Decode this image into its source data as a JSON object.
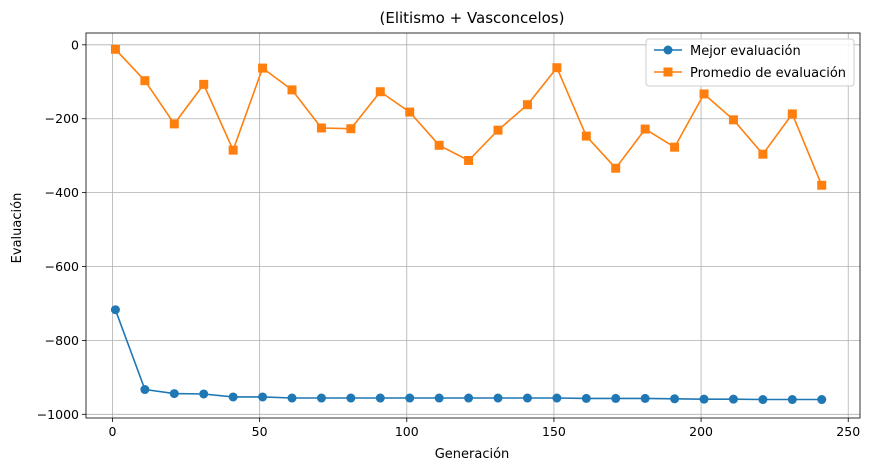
{
  "chart_data": {
    "type": "line",
    "title": "(Elitismo + Vasconcelos)",
    "xlabel": "Generación",
    "ylabel": "Evaluación",
    "xlim": [
      -9,
      254
    ],
    "ylim": [
      -1010,
      32
    ],
    "xticks": [
      0,
      50,
      100,
      150,
      200,
      250
    ],
    "yticks": [
      0,
      -200,
      -400,
      -600,
      -800,
      -1000
    ],
    "xtick_labels": [
      "0",
      "50",
      "100",
      "150",
      "200",
      "250"
    ],
    "ytick_labels": [
      "0",
      "−200",
      "−400",
      "−600",
      "−800",
      "−1000"
    ],
    "grid": true,
    "legend_position": "top-right",
    "x": [
      1,
      11,
      21,
      31,
      41,
      51,
      61,
      71,
      81,
      91,
      101,
      111,
      121,
      131,
      141,
      151,
      161,
      171,
      181,
      191,
      201,
      211,
      221,
      231,
      241
    ],
    "series": [
      {
        "name": "Mejor evaluación",
        "color": "#1f77b4",
        "marker": "circle",
        "values": [
          -717,
          -933,
          -944,
          -945,
          -953,
          -953,
          -956,
          -956,
          -956,
          -956,
          -956,
          -956,
          -956,
          -956,
          -956,
          -956,
          -957,
          -957,
          -957,
          -958,
          -959,
          -959,
          -960,
          -960,
          -960
        ]
      },
      {
        "name": "Promedio de evaluación",
        "color": "#ff7f0e",
        "marker": "square",
        "values": [
          -12,
          -97,
          -214,
          -107,
          -285,
          -63,
          -122,
          -225,
          -227,
          -127,
          -182,
          -272,
          -313,
          -231,
          -162,
          -62,
          -247,
          -334,
          -228,
          -277,
          -133,
          -203,
          -296,
          -187,
          -380
        ]
      }
    ]
  }
}
